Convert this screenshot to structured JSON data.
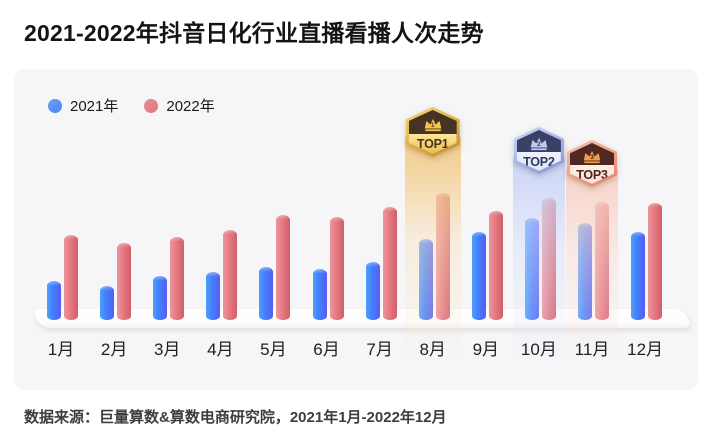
{
  "page": {
    "title": "2021-2022年抖音日化行业直播看播人次走势",
    "source_note": "数据来源：巨量算数&算数电商研究院，2021年1月-2022年12月"
  },
  "legend": [
    {
      "label": "2021年",
      "color": "#4b86f8"
    },
    {
      "label": "2022年",
      "color": "#e2737d"
    }
  ],
  "chart_data": {
    "type": "bar",
    "title": "2021-2022年抖音日化行业直播看播人次走势",
    "categories": [
      "1月",
      "2月",
      "3月",
      "4月",
      "5月",
      "6月",
      "7月",
      "8月",
      "9月",
      "10月",
      "11月",
      "12月"
    ],
    "series": [
      {
        "name": "2021年",
        "color": "#4b86f8",
        "values": [
          31,
          27,
          35,
          38,
          42,
          40,
          46,
          64,
          69,
          80,
          76,
          69
        ]
      },
      {
        "name": "2022年",
        "color": "#e2737d",
        "values": [
          67,
          61,
          65,
          71,
          83,
          81,
          89,
          100,
          86,
          96,
          93,
          92
        ]
      }
    ],
    "value_scale": "relative index, tallest bar (2022年8月) = 100; no numeric axis shown",
    "ylim": [
      0,
      110
    ],
    "grid": false,
    "legend_position": "top-left"
  },
  "badges": [
    {
      "label": "TOP1",
      "rank": "1",
      "month": "8月",
      "month_index": 7,
      "theme": {
        "frame1": "#f6d96e",
        "frame2": "#c8882a",
        "top": "#463323",
        "low1": "#fbe89d",
        "low2": "#eebb4e",
        "text": "#4a3314",
        "crown": "#f5c44e",
        "num": "#463323",
        "band1": "rgba(242,198,125,0.95)",
        "band2": "rgba(248,226,188,0.45)",
        "band3": "rgba(250,244,234,0.05)"
      }
    },
    {
      "label": "TOP2",
      "rank": "2",
      "month": "10月",
      "month_index": 9,
      "theme": {
        "frame1": "#ccd6fa",
        "frame2": "#8093dd",
        "top": "#3a4166",
        "low1": "#eef1fd",
        "low2": "#dfe5fa",
        "text": "#2f3858",
        "crown": "#bfc9f2",
        "num": "#2f3858",
        "band1": "rgba(199,209,246,0.95)",
        "band2": "rgba(215,223,248,0.45)",
        "band3": "rgba(238,242,252,0.05)"
      }
    },
    {
      "label": "TOP3",
      "rank": "3",
      "month": "11月",
      "month_index": 10,
      "theme": {
        "frame1": "#f9c2ab",
        "frame2": "#e2806a",
        "top": "#512721",
        "low1": "#fdeee7",
        "low2": "#fbdfd4",
        "text": "#4c241c",
        "crown": "#ef9d4e",
        "num": "#3c1b15",
        "band1": "rgba(248,207,194,0.95)",
        "band2": "rgba(250,221,211,0.45)",
        "band3": "rgba(253,241,237,0.05)"
      }
    }
  ]
}
